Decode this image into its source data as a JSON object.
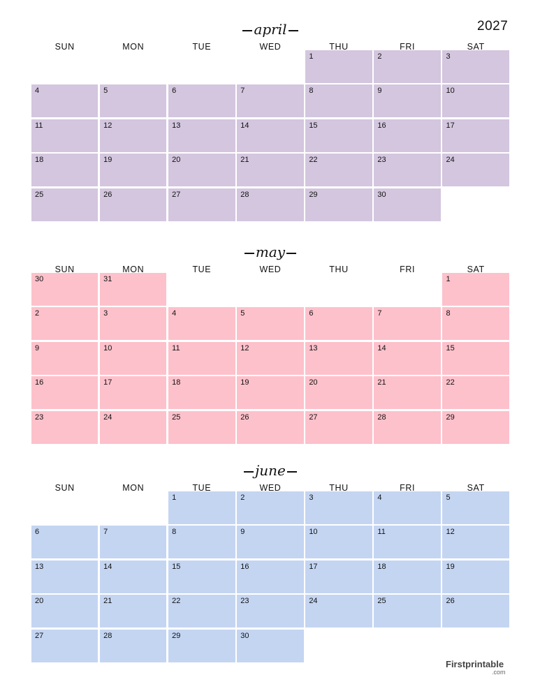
{
  "year": "2027",
  "weekdays": [
    "SUN",
    "MON",
    "TUE",
    "WED",
    "THU",
    "FRI",
    "SAT"
  ],
  "brand": {
    "name": "Firstprintable",
    "suffix": ".com"
  },
  "months": [
    {
      "name": "april",
      "color": "#d3c6de",
      "weeks": [
        [
          null,
          null,
          null,
          null,
          "1",
          "2",
          "3"
        ],
        [
          "4",
          "5",
          "6",
          "7",
          "8",
          "9",
          "10"
        ],
        [
          "11",
          "12",
          "13",
          "14",
          "15",
          "16",
          "17"
        ],
        [
          "18",
          "19",
          "20",
          "21",
          "22",
          "23",
          "24"
        ],
        [
          "25",
          "26",
          "27",
          "28",
          "29",
          "30",
          null
        ]
      ]
    },
    {
      "name": "may",
      "color": "#fdc1cb",
      "weeks": [
        [
          "30",
          "31",
          null,
          null,
          null,
          null,
          "1"
        ],
        [
          "2",
          "3",
          "4",
          "5",
          "6",
          "7",
          "8"
        ],
        [
          "9",
          "10",
          "11",
          "12",
          "13",
          "14",
          "15"
        ],
        [
          "16",
          "17",
          "18",
          "19",
          "20",
          "21",
          "22"
        ],
        [
          "23",
          "24",
          "25",
          "26",
          "27",
          "28",
          "29"
        ]
      ]
    },
    {
      "name": "june",
      "color": "#c4d5f2",
      "weeks": [
        [
          null,
          null,
          "1",
          "2",
          "3",
          "4",
          "5"
        ],
        [
          "6",
          "7",
          "8",
          "9",
          "10",
          "11",
          "12"
        ],
        [
          "13",
          "14",
          "15",
          "16",
          "17",
          "18",
          "19"
        ],
        [
          "20",
          "21",
          "22",
          "23",
          "24",
          "25",
          "26"
        ],
        [
          "27",
          "28",
          "29",
          "30",
          null,
          null,
          null
        ]
      ]
    }
  ]
}
